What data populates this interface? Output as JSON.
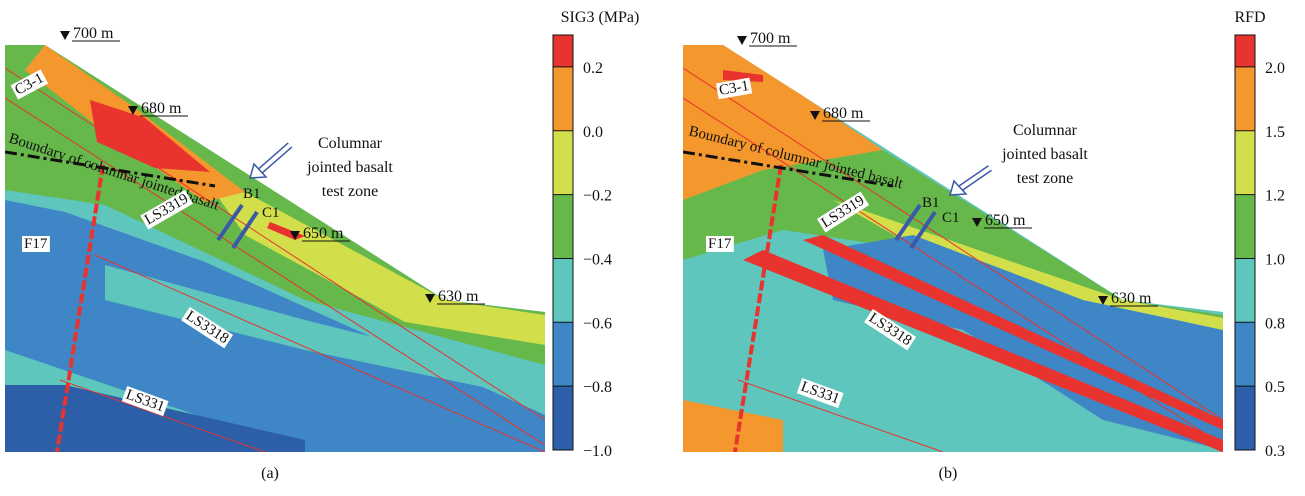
{
  "panels": [
    {
      "caption": "(a)",
      "colorbar": {
        "title": "SIG3 (MPa)",
        "ticks": [
          "0.2",
          "0.0",
          "−0.2",
          "−0.4",
          "−0.6",
          "−0.8",
          "−1.0"
        ]
      },
      "elevations": [
        "700 m",
        "680 m",
        "650 m",
        "630 m"
      ],
      "annotations": {
        "zone": "C3-1",
        "boundary": "Boundary of columnar jointed basalt",
        "test_zone": [
          "Columnar",
          "jointed basalt",
          "test zone"
        ],
        "b1": "B1",
        "c1": "C1",
        "ls3319": "LS3319",
        "f17": "F17",
        "ls3318": "LS3318",
        "ls331": "LS331"
      }
    },
    {
      "caption": "(b)",
      "colorbar": {
        "title": "RFD",
        "ticks": [
          "2.0",
          "1.5",
          "1.2",
          "1.0",
          "0.8",
          "0.5",
          "0.3"
        ]
      },
      "elevations": [
        "700 m",
        "680 m",
        "650 m",
        "630 m"
      ],
      "annotations": {
        "zone": "C3-1",
        "boundary": "Boundary of columnar jointed basalt",
        "test_zone": [
          "Columnar",
          "jointed basalt",
          "test zone"
        ],
        "b1": "B1",
        "c1": "C1",
        "ls3319": "LS3319",
        "f17": "F17",
        "ls3318": "LS3318",
        "ls331": "LS331"
      }
    }
  ]
}
